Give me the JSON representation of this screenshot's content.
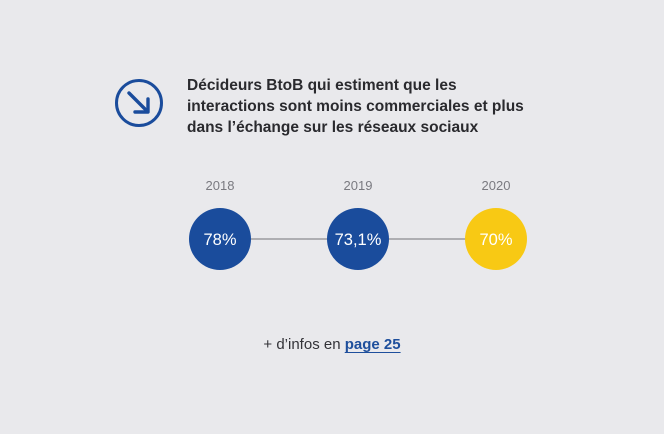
{
  "title": "Décideurs BtoB qui estiment que les interactions sont moins commerciales et plus dans l’échange sur les réseaux sociaux",
  "footer": {
    "prefix": "+ d’infos en ",
    "link_label": "page 25"
  },
  "icon": "arrow-down-right-circle-icon",
  "colors": {
    "primary_blue": "#1a4c9c",
    "highlight_yellow": "#f8c914",
    "connector": "#8a8a90",
    "year_text": "#7a7a80",
    "background": "#e9e9ec"
  },
  "chart_data": {
    "type": "bubble-timeline",
    "categories": [
      "2018",
      "2019",
      "2020"
    ],
    "values": [
      78,
      73.1,
      70
    ],
    "labels": [
      "78%",
      "73,1%",
      "70%"
    ],
    "unit": "%",
    "highlight_index": 2
  }
}
